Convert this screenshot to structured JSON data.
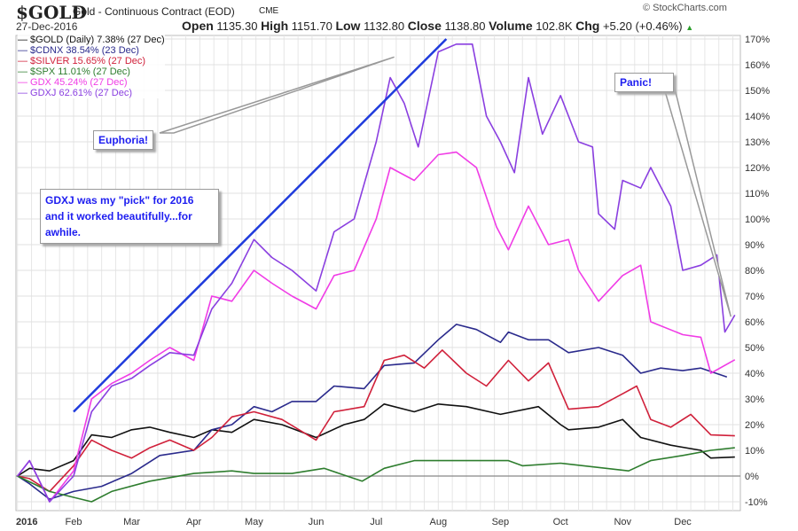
{
  "header": {
    "symbol": "$GOLD",
    "description": "Gold - Continuous Contract (EOD)",
    "exchange": "CME",
    "date": "27-Dec-2016",
    "open_label": "Open",
    "open": "1135.30",
    "high_label": "High",
    "high": "1151.70",
    "low_label": "Low",
    "low": "1132.80",
    "close_label": "Close",
    "close": "1138.80",
    "volume_label": "Volume",
    "volume": "102.8K",
    "chg_label": "Chg",
    "chg": "+5.20 (+0.46%)",
    "chg_icon": "up-triangle-icon",
    "brand": "© StockCharts.com"
  },
  "chart_data": {
    "type": "line",
    "title": "",
    "xlabel": "",
    "ylabel": "",
    "ylim": [
      -10,
      170
    ],
    "yticks": [
      "170%",
      "160%",
      "150%",
      "140%",
      "130%",
      "120%",
      "110%",
      "100%",
      "90%",
      "80%",
      "70%",
      "60%",
      "50%",
      "40%",
      "30%",
      "20%",
      "10%",
      "0%",
      "-10%"
    ],
    "xticks": [
      {
        "label": "2016",
        "date": "2016-01-01"
      },
      {
        "label": "Feb",
        "date": "2016-02-01"
      },
      {
        "label": "Mar",
        "date": "2016-03-01"
      },
      {
        "label": "Apr",
        "date": "2016-04-01"
      },
      {
        "label": "May",
        "date": "2016-05-01"
      },
      {
        "label": "Jun",
        "date": "2016-06-01"
      },
      {
        "label": "Jul",
        "date": "2016-07-01"
      },
      {
        "label": "Aug",
        "date": "2016-08-01"
      },
      {
        "label": "Sep",
        "date": "2016-09-01"
      },
      {
        "label": "Oct",
        "date": "2016-10-01"
      },
      {
        "label": "Nov",
        "date": "2016-11-01"
      },
      {
        "label": "Dec",
        "date": "2016-12-01"
      }
    ],
    "grid": true,
    "legend_position": "top-left",
    "series": [
      {
        "name": "$GOLD",
        "legend": "$GOLD (Daily) 7.38% (27 Dec)",
        "color": "#111111",
        "points": [
          [
            "2016-01-04",
            0
          ],
          [
            "2016-01-10",
            3
          ],
          [
            "2016-01-20",
            2
          ],
          [
            "2016-02-01",
            6
          ],
          [
            "2016-02-10",
            16
          ],
          [
            "2016-02-20",
            15
          ],
          [
            "2016-03-01",
            18
          ],
          [
            "2016-03-10",
            19
          ],
          [
            "2016-03-20",
            17
          ],
          [
            "2016-04-01",
            15
          ],
          [
            "2016-04-10",
            18
          ],
          [
            "2016-04-20",
            17
          ],
          [
            "2016-05-01",
            22
          ],
          [
            "2016-05-15",
            20
          ],
          [
            "2016-06-01",
            15
          ],
          [
            "2016-06-15",
            20
          ],
          [
            "2016-06-25",
            22
          ],
          [
            "2016-07-05",
            28
          ],
          [
            "2016-07-20",
            25
          ],
          [
            "2016-08-01",
            28
          ],
          [
            "2016-08-15",
            27
          ],
          [
            "2016-09-01",
            24
          ],
          [
            "2016-09-20",
            27
          ],
          [
            "2016-10-01",
            20
          ],
          [
            "2016-10-05",
            18
          ],
          [
            "2016-10-20",
            19
          ],
          [
            "2016-11-01",
            22
          ],
          [
            "2016-11-10",
            15
          ],
          [
            "2016-11-25",
            12
          ],
          [
            "2016-12-10",
            10
          ],
          [
            "2016-12-15",
            7
          ],
          [
            "2016-12-27",
            7.38
          ]
        ]
      },
      {
        "name": "$CDNX",
        "legend": "$CDNX 38.54% (23 Dec)",
        "color": "#2a2a8c",
        "points": [
          [
            "2016-01-04",
            0
          ],
          [
            "2016-01-10",
            -3
          ],
          [
            "2016-01-20",
            -9
          ],
          [
            "2016-02-01",
            -6
          ],
          [
            "2016-02-15",
            -4
          ],
          [
            "2016-03-01",
            1
          ],
          [
            "2016-03-15",
            8
          ],
          [
            "2016-04-01",
            10
          ],
          [
            "2016-04-10",
            18
          ],
          [
            "2016-04-20",
            20
          ],
          [
            "2016-05-01",
            27
          ],
          [
            "2016-05-10",
            25
          ],
          [
            "2016-05-20",
            29
          ],
          [
            "2016-06-01",
            29
          ],
          [
            "2016-06-10",
            35
          ],
          [
            "2016-06-25",
            34
          ],
          [
            "2016-07-05",
            43
          ],
          [
            "2016-07-20",
            44
          ],
          [
            "2016-08-01",
            53
          ],
          [
            "2016-08-10",
            59
          ],
          [
            "2016-08-20",
            57
          ],
          [
            "2016-09-01",
            52
          ],
          [
            "2016-09-05",
            56
          ],
          [
            "2016-09-15",
            53
          ],
          [
            "2016-09-25",
            53
          ],
          [
            "2016-10-05",
            48
          ],
          [
            "2016-10-20",
            50
          ],
          [
            "2016-11-01",
            47
          ],
          [
            "2016-11-10",
            40
          ],
          [
            "2016-11-20",
            42
          ],
          [
            "2016-12-01",
            41
          ],
          [
            "2016-12-10",
            42
          ],
          [
            "2016-12-23",
            38.54
          ]
        ]
      },
      {
        "name": "$SILVER",
        "legend": "$SILVER 15.65% (27 Dec)",
        "color": "#d0203a",
        "points": [
          [
            "2016-01-04",
            0
          ],
          [
            "2016-01-10",
            -1
          ],
          [
            "2016-01-20",
            -6
          ],
          [
            "2016-02-01",
            4
          ],
          [
            "2016-02-10",
            14
          ],
          [
            "2016-02-20",
            10
          ],
          [
            "2016-03-01",
            7
          ],
          [
            "2016-03-10",
            11
          ],
          [
            "2016-03-20",
            14
          ],
          [
            "2016-04-01",
            10
          ],
          [
            "2016-04-10",
            15
          ],
          [
            "2016-04-20",
            23
          ],
          [
            "2016-05-01",
            25
          ],
          [
            "2016-05-15",
            22
          ],
          [
            "2016-06-01",
            14
          ],
          [
            "2016-06-10",
            25
          ],
          [
            "2016-06-25",
            27
          ],
          [
            "2016-07-05",
            45
          ],
          [
            "2016-07-15",
            47
          ],
          [
            "2016-07-25",
            42
          ],
          [
            "2016-08-03",
            49
          ],
          [
            "2016-08-15",
            40
          ],
          [
            "2016-08-25",
            35
          ],
          [
            "2016-09-05",
            45
          ],
          [
            "2016-09-15",
            37
          ],
          [
            "2016-09-25",
            44
          ],
          [
            "2016-10-05",
            26
          ],
          [
            "2016-10-20",
            27
          ],
          [
            "2016-11-01",
            32
          ],
          [
            "2016-11-08",
            35
          ],
          [
            "2016-11-15",
            22
          ],
          [
            "2016-11-25",
            19
          ],
          [
            "2016-12-05",
            24
          ],
          [
            "2016-12-15",
            16
          ],
          [
            "2016-12-27",
            15.65
          ]
        ]
      },
      {
        "name": "$SPX",
        "legend": "$SPX 11.01% (27 Dec)",
        "color": "#2e7d2e",
        "points": [
          [
            "2016-01-04",
            0
          ],
          [
            "2016-01-20",
            -6
          ],
          [
            "2016-02-10",
            -10
          ],
          [
            "2016-02-20",
            -6
          ],
          [
            "2016-03-10",
            -2
          ],
          [
            "2016-04-01",
            1
          ],
          [
            "2016-04-20",
            2
          ],
          [
            "2016-05-01",
            1
          ],
          [
            "2016-05-20",
            1
          ],
          [
            "2016-06-05",
            3
          ],
          [
            "2016-06-24",
            -2
          ],
          [
            "2016-07-05",
            3
          ],
          [
            "2016-07-20",
            6
          ],
          [
            "2016-08-10",
            6
          ],
          [
            "2016-09-05",
            6
          ],
          [
            "2016-09-12",
            4
          ],
          [
            "2016-10-01",
            5
          ],
          [
            "2016-11-04",
            2
          ],
          [
            "2016-11-15",
            6
          ],
          [
            "2016-12-01",
            8
          ],
          [
            "2016-12-15",
            10
          ],
          [
            "2016-12-27",
            11.01
          ]
        ]
      },
      {
        "name": "GDX",
        "legend": "GDX 45.24% (27 Dec)",
        "color": "#f03ce6",
        "points": [
          [
            "2016-01-04",
            0
          ],
          [
            "2016-01-10",
            6
          ],
          [
            "2016-01-20",
            -10
          ],
          [
            "2016-02-01",
            2
          ],
          [
            "2016-02-10",
            30
          ],
          [
            "2016-02-20",
            36
          ],
          [
            "2016-03-01",
            40
          ],
          [
            "2016-03-10",
            45
          ],
          [
            "2016-03-20",
            50
          ],
          [
            "2016-04-01",
            45
          ],
          [
            "2016-04-10",
            70
          ],
          [
            "2016-04-20",
            68
          ],
          [
            "2016-05-01",
            80
          ],
          [
            "2016-05-10",
            75
          ],
          [
            "2016-05-20",
            70
          ],
          [
            "2016-06-01",
            65
          ],
          [
            "2016-06-10",
            78
          ],
          [
            "2016-06-20",
            80
          ],
          [
            "2016-07-01",
            100
          ],
          [
            "2016-07-08",
            120
          ],
          [
            "2016-07-20",
            115
          ],
          [
            "2016-08-01",
            125
          ],
          [
            "2016-08-10",
            126
          ],
          [
            "2016-08-20",
            120
          ],
          [
            "2016-08-30",
            97
          ],
          [
            "2016-09-05",
            88
          ],
          [
            "2016-09-15",
            105
          ],
          [
            "2016-09-25",
            90
          ],
          [
            "2016-10-05",
            92
          ],
          [
            "2016-10-10",
            80
          ],
          [
            "2016-10-20",
            68
          ],
          [
            "2016-11-01",
            78
          ],
          [
            "2016-11-10",
            82
          ],
          [
            "2016-11-15",
            60
          ],
          [
            "2016-12-01",
            55
          ],
          [
            "2016-12-10",
            54
          ],
          [
            "2016-12-15",
            40
          ],
          [
            "2016-12-27",
            45.24
          ]
        ]
      },
      {
        "name": "GDXJ",
        "legend": "GDXJ 62.61% (27 Dec)",
        "color": "#8a3fe0",
        "points": [
          [
            "2016-01-04",
            0
          ],
          [
            "2016-01-10",
            6
          ],
          [
            "2016-01-20",
            -10
          ],
          [
            "2016-02-01",
            0
          ],
          [
            "2016-02-10",
            25
          ],
          [
            "2016-02-20",
            35
          ],
          [
            "2016-03-01",
            38
          ],
          [
            "2016-03-10",
            43
          ],
          [
            "2016-03-20",
            48
          ],
          [
            "2016-04-01",
            47
          ],
          [
            "2016-04-10",
            65
          ],
          [
            "2016-04-20",
            75
          ],
          [
            "2016-05-01",
            92
          ],
          [
            "2016-05-10",
            85
          ],
          [
            "2016-05-20",
            80
          ],
          [
            "2016-06-01",
            72
          ],
          [
            "2016-06-10",
            95
          ],
          [
            "2016-06-20",
            100
          ],
          [
            "2016-07-01",
            130
          ],
          [
            "2016-07-08",
            155
          ],
          [
            "2016-07-15",
            145
          ],
          [
            "2016-07-22",
            128
          ],
          [
            "2016-08-01",
            165
          ],
          [
            "2016-08-10",
            168
          ],
          [
            "2016-08-18",
            168
          ],
          [
            "2016-08-25",
            140
          ],
          [
            "2016-09-01",
            130
          ],
          [
            "2016-09-08",
            118
          ],
          [
            "2016-09-15",
            155
          ],
          [
            "2016-09-22",
            133
          ],
          [
            "2016-10-01",
            148
          ],
          [
            "2016-10-10",
            130
          ],
          [
            "2016-10-17",
            128
          ],
          [
            "2016-10-20",
            102
          ],
          [
            "2016-10-28",
            96
          ],
          [
            "2016-11-01",
            115
          ],
          [
            "2016-11-10",
            112
          ],
          [
            "2016-11-15",
            120
          ],
          [
            "2016-11-25",
            105
          ],
          [
            "2016-12-01",
            80
          ],
          [
            "2016-12-10",
            82
          ],
          [
            "2016-12-18",
            86
          ],
          [
            "2016-12-22",
            56
          ],
          [
            "2016-12-27",
            62.61
          ]
        ]
      }
    ],
    "trendline": {
      "color": "#1f3bdc",
      "from": [
        "2016-02-01",
        25
      ],
      "to": [
        "2016-08-05",
        170
      ]
    },
    "annotations": [
      {
        "text": "Euphoria!",
        "points_to": [
          "2016-07-10",
          163
        ]
      },
      {
        "text": "GDXJ was my \"pick\" for 2016 and it worked beautifully...for awhile."
      },
      {
        "text": "Panic!",
        "points_to": [
          "2016-12-25",
          62
        ]
      }
    ]
  }
}
